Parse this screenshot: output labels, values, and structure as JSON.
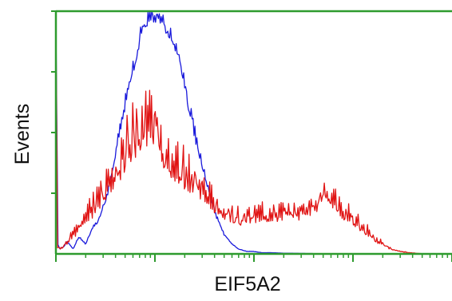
{
  "chart_data": {
    "type": "line",
    "title": "",
    "xlabel": "EIF5A2",
    "ylabel": "Events",
    "x_scale": "log",
    "xlim": [
      1,
      10000
    ],
    "ylim": [
      0,
      100
    ],
    "grid": false,
    "legend": "none",
    "axis_color": "#2e9b2e",
    "series": [
      {
        "color": "#1a1adb",
        "x": [
          1,
          1.05,
          1.1,
          1.2,
          1.3,
          1.5,
          1.7,
          2,
          2.3,
          2.7,
          3.2,
          3.8,
          4.5,
          5.3,
          6.3,
          7.5,
          8.9,
          10.5,
          12.5,
          15,
          18,
          21,
          25,
          30,
          36,
          42,
          50,
          60,
          70,
          85,
          100,
          120,
          150,
          200,
          300,
          500,
          1000,
          10000
        ],
        "y": [
          96,
          4,
          2,
          3,
          5,
          2,
          7,
          4,
          10,
          14,
          22,
          36,
          52,
          66,
          80,
          92,
          99,
          97,
          94,
          90,
          80,
          65,
          50,
          36,
          24,
          15,
          8,
          4,
          2,
          1,
          1,
          0.5,
          0.5,
          0.3,
          0.2,
          0.1,
          0,
          0
        ]
      },
      {
        "color": "#e01414",
        "x": [
          1,
          1.04,
          1.1,
          1.3,
          1.5,
          1.8,
          2.1,
          2.5,
          3,
          3.5,
          4,
          4.6,
          5.3,
          6,
          7,
          8,
          9.2,
          10.5,
          12,
          14,
          16,
          19,
          22,
          26,
          30,
          36,
          44,
          55,
          70,
          90,
          120,
          160,
          210,
          270,
          330,
          400,
          480,
          550,
          620,
          700,
          800,
          900,
          1000,
          1150,
          1300,
          1500,
          1700,
          2000,
          2400,
          3000,
          3600,
          4500,
          6000,
          10000
        ],
        "y": [
          96,
          3,
          2,
          5,
          8,
          12,
          16,
          20,
          26,
          30,
          34,
          38,
          44,
          48,
          52,
          56,
          54,
          50,
          44,
          40,
          36,
          34,
          32,
          30,
          26,
          22,
          18,
          16,
          15,
          15,
          16,
          16,
          17,
          17,
          18,
          20,
          22,
          24,
          22,
          20,
          18,
          16,
          14,
          12,
          10,
          8,
          6,
          4,
          2,
          1,
          0.5,
          0.2,
          0,
          0
        ]
      }
    ]
  }
}
